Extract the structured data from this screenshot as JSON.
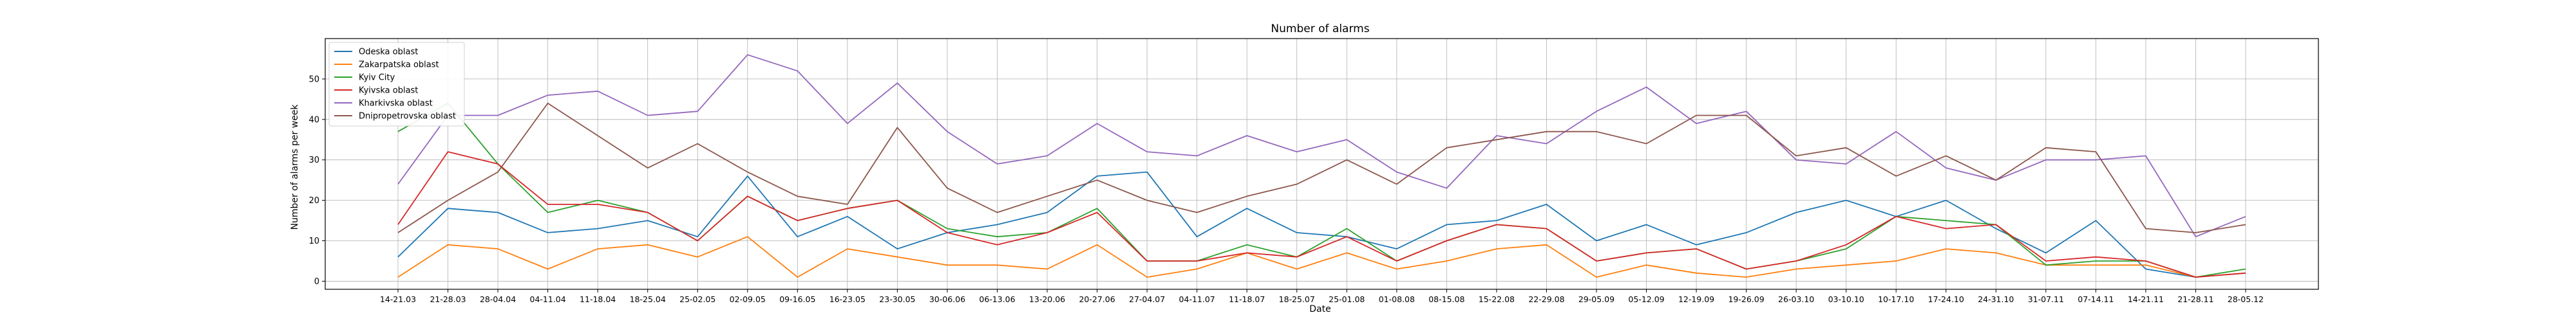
{
  "chart_data": {
    "type": "line",
    "title": "Number of alarms",
    "xlabel": "Date",
    "ylabel": "Number of alarms per week",
    "ylim": [
      -2,
      60
    ],
    "yticks": [
      0,
      10,
      20,
      30,
      40,
      50
    ],
    "grid": true,
    "legend_position": "top-left",
    "x": [
      "14-21.03",
      "21-28.03",
      "28-04.04",
      "04-11.04",
      "11-18.04",
      "18-25.04",
      "25-02.05",
      "02-09.05",
      "09-16.05",
      "16-23.05",
      "23-30.05",
      "30-06.06",
      "06-13.06",
      "13-20.06",
      "20-27.06",
      "27-04.07",
      "04-11.07",
      "11-18.07",
      "18-25.07",
      "25-01.08",
      "01-08.08",
      "08-15.08",
      "15-22.08",
      "22-29.08",
      "29-05.09",
      "05-12.09",
      "12-19.09",
      "19-26.09",
      "26-03.10",
      "03-10.10",
      "10-17.10",
      "17-24.10",
      "24-31.10",
      "31-07.11",
      "07-14.11",
      "14-21.11",
      "21-28.11",
      "28-05.12"
    ],
    "series": [
      {
        "name": "Odeska oblast",
        "color": "#1f77b4",
        "values": [
          6,
          18,
          17,
          12,
          13,
          15,
          11,
          26,
          11,
          16,
          8,
          12,
          14,
          17,
          26,
          27,
          11,
          18,
          12,
          11,
          8,
          14,
          15,
          19,
          10,
          14,
          9,
          12,
          17,
          20,
          16,
          20,
          13,
          7,
          15,
          3,
          1,
          2
        ]
      },
      {
        "name": "Zakarpatska oblast",
        "color": "#ff7f0e",
        "values": [
          1,
          9,
          8,
          3,
          8,
          9,
          6,
          11,
          1,
          8,
          6,
          4,
          4,
          3,
          9,
          1,
          3,
          7,
          3,
          7,
          3,
          5,
          8,
          9,
          1,
          4,
          2,
          1,
          3,
          4,
          5,
          8,
          7,
          4,
          4,
          4,
          1,
          2
        ]
      },
      {
        "name": "Kyiv City",
        "color": "#2ca02c",
        "values": [
          37,
          44,
          29,
          17,
          20,
          17,
          10,
          21,
          15,
          18,
          20,
          13,
          11,
          12,
          18,
          5,
          5,
          9,
          6,
          13,
          5,
          10,
          14,
          13,
          5,
          7,
          8,
          3,
          5,
          8,
          16,
          15,
          14,
          4,
          5,
          5,
          1,
          3
        ]
      },
      {
        "name": "Kyivska oblast",
        "color": "#d62728",
        "values": [
          14,
          32,
          29,
          19,
          19,
          17,
          10,
          21,
          15,
          18,
          20,
          12,
          9,
          12,
          17,
          5,
          5,
          7,
          6,
          11,
          5,
          10,
          14,
          13,
          5,
          7,
          8,
          3,
          5,
          9,
          16,
          13,
          14,
          5,
          6,
          5,
          1,
          2
        ]
      },
      {
        "name": "Kharkivska oblast",
        "color": "#9467bd",
        "values": [
          24,
          41,
          41,
          46,
          47,
          41,
          42,
          56,
          52,
          39,
          49,
          37,
          29,
          31,
          39,
          32,
          31,
          36,
          32,
          35,
          27,
          23,
          36,
          34,
          42,
          48,
          39,
          42,
          30,
          29,
          37,
          28,
          25,
          30,
          30,
          31,
          11,
          16
        ]
      },
      {
        "name": "Dnipropetrovska oblast",
        "color": "#8c564b",
        "values": [
          12,
          20,
          27,
          44,
          36,
          28,
          34,
          27,
          21,
          19,
          38,
          23,
          17,
          21,
          25,
          20,
          17,
          21,
          24,
          30,
          24,
          33,
          35,
          37,
          37,
          34,
          41,
          41,
          31,
          33,
          26,
          31,
          25,
          33,
          32,
          13,
          12,
          14
        ]
      }
    ]
  }
}
